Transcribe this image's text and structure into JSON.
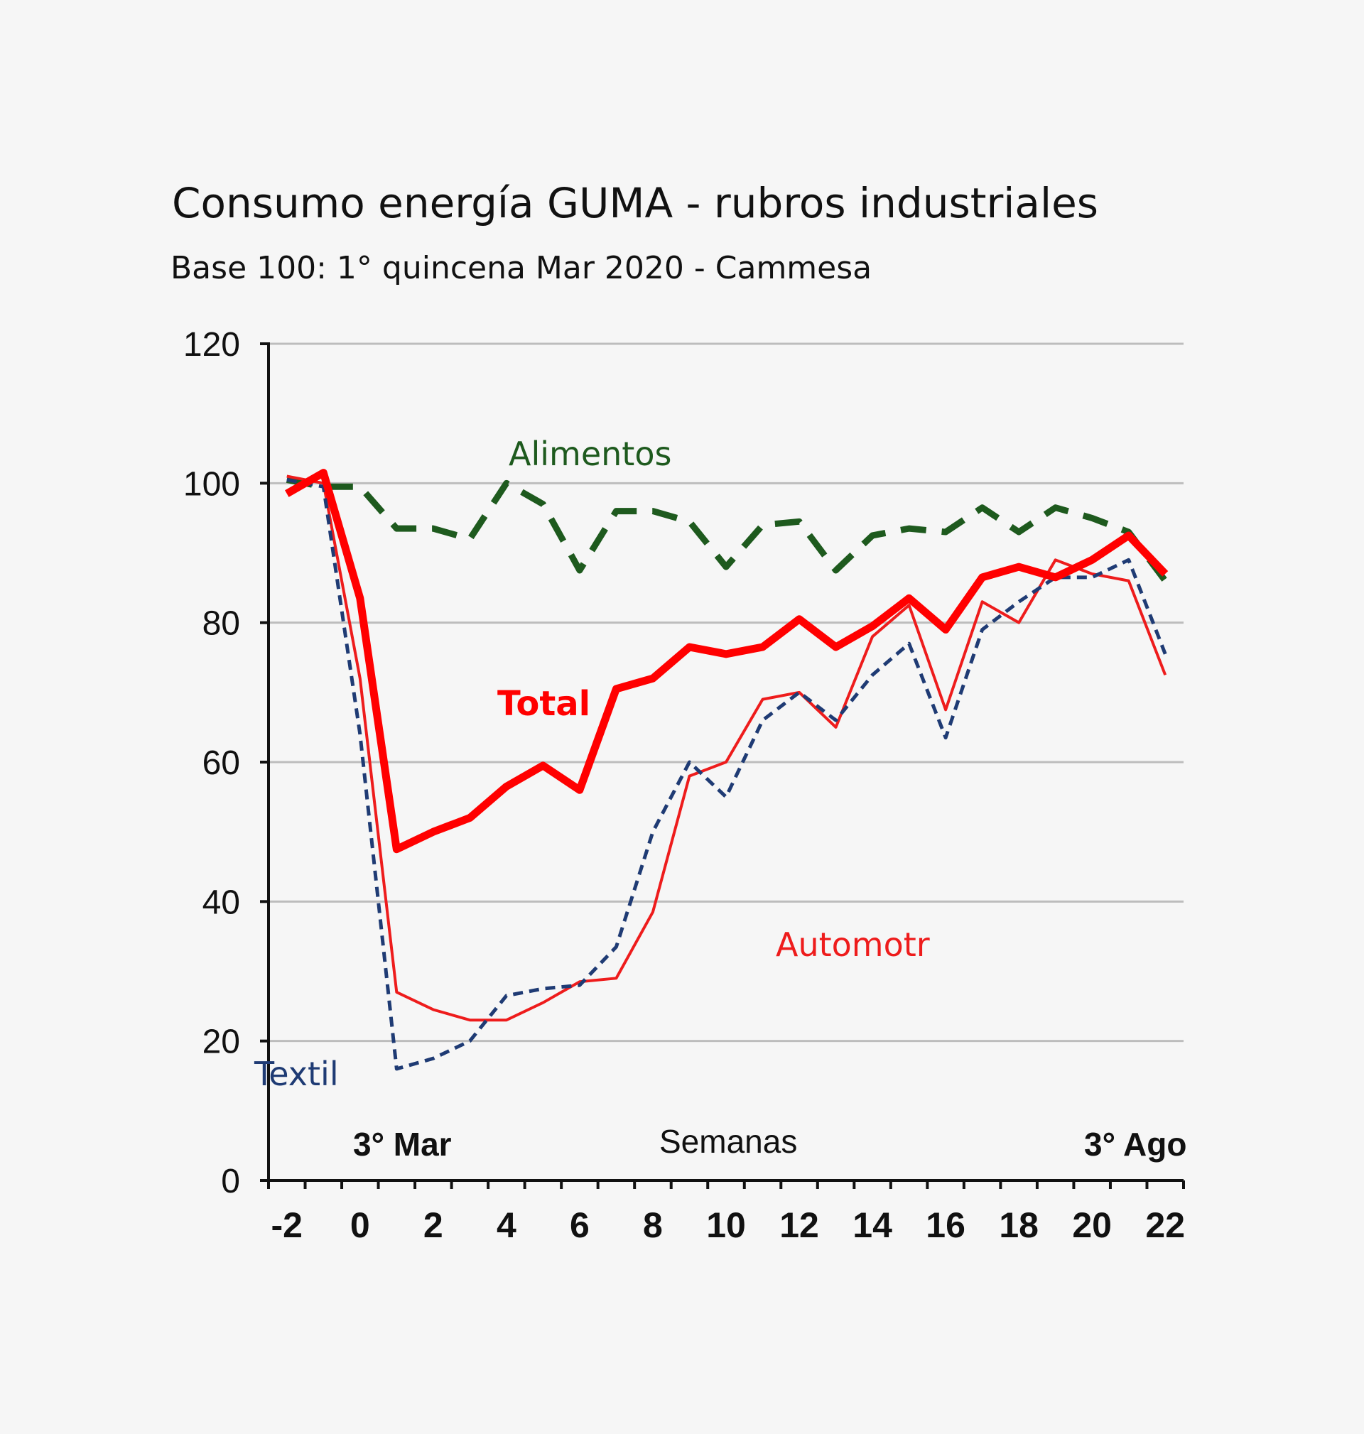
{
  "chart_data": {
    "type": "line",
    "title": "Consumo energía GUMA - rubros industriales",
    "subtitle": "Base 100: 1° quincena Mar 2020 - Cammesa",
    "xlabel": "Semanas",
    "ylabel": "",
    "xlim": [
      -2,
      23
    ],
    "ylim": [
      0,
      120
    ],
    "y_ticks": [
      0,
      20,
      40,
      60,
      80,
      100,
      120
    ],
    "x_ticks": [
      -2,
      0,
      2,
      4,
      6,
      8,
      10,
      12,
      14,
      16,
      18,
      20,
      22
    ],
    "grid": true,
    "annotations": [
      {
        "text": "3° Mar",
        "x": 1.8,
        "y": 6
      },
      {
        "text": "3° Ago",
        "x": 21.8,
        "y": 6
      }
    ],
    "x": [
      -1.5,
      -0.5,
      0.5,
      1.5,
      2.5,
      3.5,
      4.5,
      5.5,
      6.5,
      7.5,
      8.5,
      9.5,
      10.5,
      11.5,
      12.5,
      13.5,
      14.5,
      15.5,
      16.5,
      17.5,
      18.5,
      19.5,
      20.5,
      21.5,
      22.5
    ],
    "series": [
      {
        "name": "Alimentos",
        "color": "#1e5a1e",
        "style": "dashed",
        "values": [
          100.5,
          99.5,
          99.5,
          93.5,
          93.5,
          92,
          100,
          97,
          87.5,
          96,
          96,
          94.5,
          88,
          94,
          94.5,
          87.5,
          92.5,
          93.5,
          93,
          96.5,
          93,
          96.5,
          95,
          93,
          86
        ]
      },
      {
        "name": "Total",
        "color": "#ff0000",
        "style": "solid-thick",
        "values": [
          98.5,
          101.5,
          83.5,
          47.5,
          50,
          52,
          56.5,
          59.5,
          56,
          70.5,
          72,
          76.5,
          75.5,
          76.5,
          80.5,
          76.5,
          79.5,
          83.5,
          79,
          86.5,
          88,
          86.5,
          89,
          92.5,
          87
        ]
      },
      {
        "name": "Automotr",
        "color": "#ee1c1c",
        "style": "solid",
        "values": [
          101,
          100,
          72,
          27,
          24.5,
          23,
          23,
          25.5,
          28.5,
          29,
          38.5,
          58,
          60,
          69,
          70,
          65,
          78,
          82.5,
          67.5,
          83,
          80,
          89,
          87,
          86,
          72.5
        ]
      },
      {
        "name": "Textil",
        "color": "#1f3b74",
        "style": "dashed",
        "values": [
          100.5,
          99.5,
          64,
          16,
          17.5,
          20,
          26.5,
          27.5,
          28,
          33.5,
          50,
          60,
          55,
          66,
          70,
          66,
          72.5,
          77,
          63.5,
          79,
          83,
          86.5,
          86.5,
          89,
          75.5
        ]
      }
    ]
  }
}
